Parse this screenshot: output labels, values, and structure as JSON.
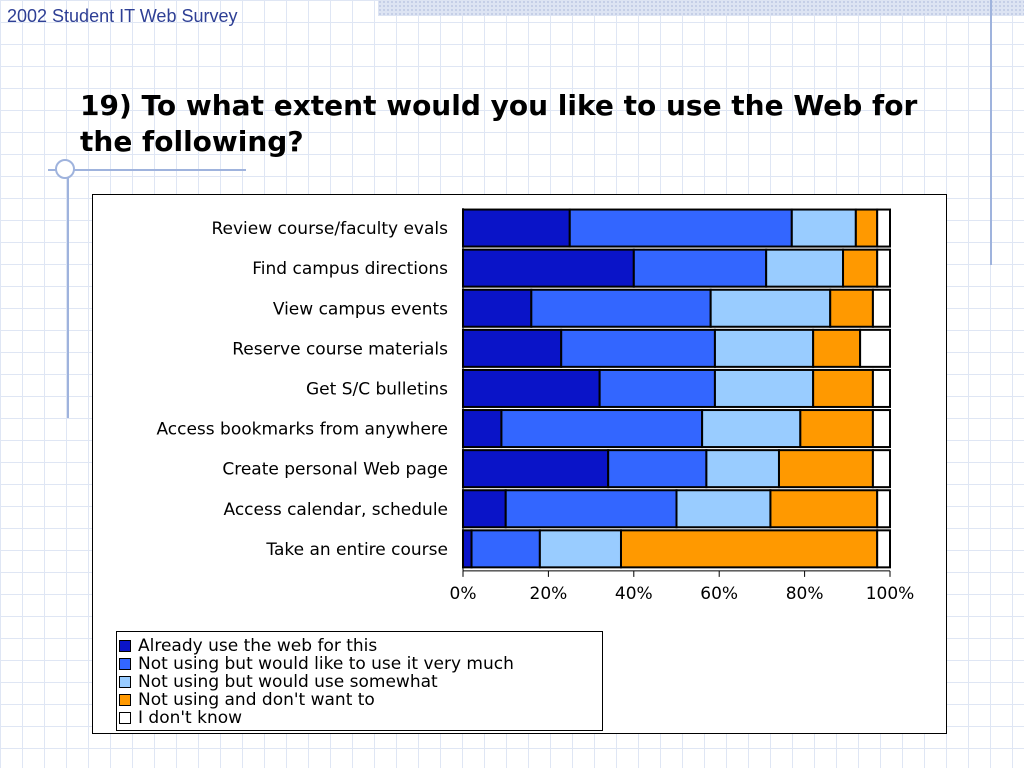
{
  "header": {
    "title": "2002 Student IT Web Survey"
  },
  "slide": {
    "title": "19) To what extent would you like to use the Web for the following?"
  },
  "colors": {
    "already": "#0a14c8",
    "very_much": "#3366ff",
    "somewhat": "#99ccff",
    "dont_want": "#ff9900",
    "dont_know": "#ffffff"
  },
  "chart_data": {
    "type": "bar",
    "orientation": "horizontal",
    "stacked": true,
    "percent": true,
    "title": "",
    "xlabel": "",
    "ylabel": "",
    "xlim": [
      0,
      100
    ],
    "x_ticks": [
      "0%",
      "20%",
      "40%",
      "60%",
      "80%",
      "100%"
    ],
    "grid": false,
    "legend_position": "bottom-left",
    "categories": [
      "Review course/faculty evals",
      "Find campus directions",
      "View campus events",
      "Reserve course materials",
      "Get S/C bulletins",
      "Access bookmarks from anywhere",
      "Create personal Web page",
      "Access calendar, schedule",
      "Take an entire course"
    ],
    "series": [
      {
        "name": "Already use the web for this",
        "color": "#0a14c8",
        "values": [
          25,
          40,
          16,
          23,
          32,
          9,
          34,
          10,
          2
        ]
      },
      {
        "name": "Not using but would like to use it very much",
        "color": "#3366ff",
        "values": [
          52,
          31,
          42,
          36,
          27,
          47,
          23,
          40,
          16
        ]
      },
      {
        "name": "Not using but would use somewhat",
        "color": "#99ccff",
        "values": [
          15,
          18,
          28,
          23,
          23,
          23,
          17,
          22,
          19
        ]
      },
      {
        "name": "Not using and don't want to",
        "color": "#ff9900",
        "values": [
          5,
          8,
          10,
          11,
          14,
          17,
          22,
          25,
          60
        ]
      },
      {
        "name": "I don't know",
        "color": "#ffffff",
        "values": [
          3,
          3,
          4,
          7,
          4,
          4,
          4,
          3,
          3
        ]
      }
    ]
  }
}
